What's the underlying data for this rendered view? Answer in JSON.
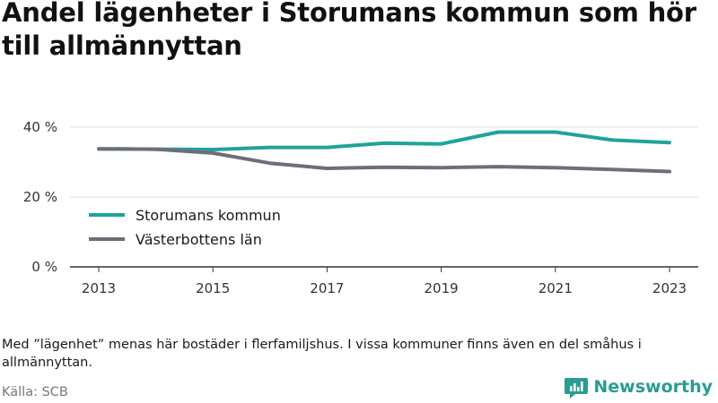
{
  "title": "Andel lägenheter i Storumans kommun som hör till allmännyttan",
  "note": "Med ”lägenhet” menas här bostäder i flerfamiljshus. I vissa kommuner finns även en del småhus i allmännyttan.",
  "source": "Källa: SCB",
  "brand": {
    "name": "Newsworthy",
    "icon": "newsworthy-logo-icon",
    "color": "#2a9d8f"
  },
  "chart_data": {
    "type": "line",
    "x": [
      2013,
      2014,
      2015,
      2016,
      2017,
      2018,
      2019,
      2020,
      2021,
      2022,
      2023
    ],
    "x_tick_labels": [
      "2013",
      "2015",
      "2017",
      "2019",
      "2021",
      "2023"
    ],
    "y_tick_labels": [
      "0 %",
      "20 %",
      "40 %"
    ],
    "y_ticks": [
      0,
      20,
      40
    ],
    "ylim": [
      0,
      40
    ],
    "xlim": [
      2013,
      2023
    ],
    "grid": "horizontal",
    "legend_position": "left-middle",
    "series": [
      {
        "name": "Storumans kommun",
        "color": "#1fa39a",
        "values": [
          33.8,
          33.7,
          33.6,
          34.2,
          34.2,
          35.4,
          35.2,
          38.6,
          38.6,
          36.3,
          35.6
        ]
      },
      {
        "name": "Västerbottens län",
        "color": "#6e6e78",
        "values": [
          33.8,
          33.7,
          32.6,
          29.7,
          28.2,
          28.5,
          28.4,
          28.7,
          28.4,
          27.9,
          27.3
        ]
      }
    ]
  }
}
